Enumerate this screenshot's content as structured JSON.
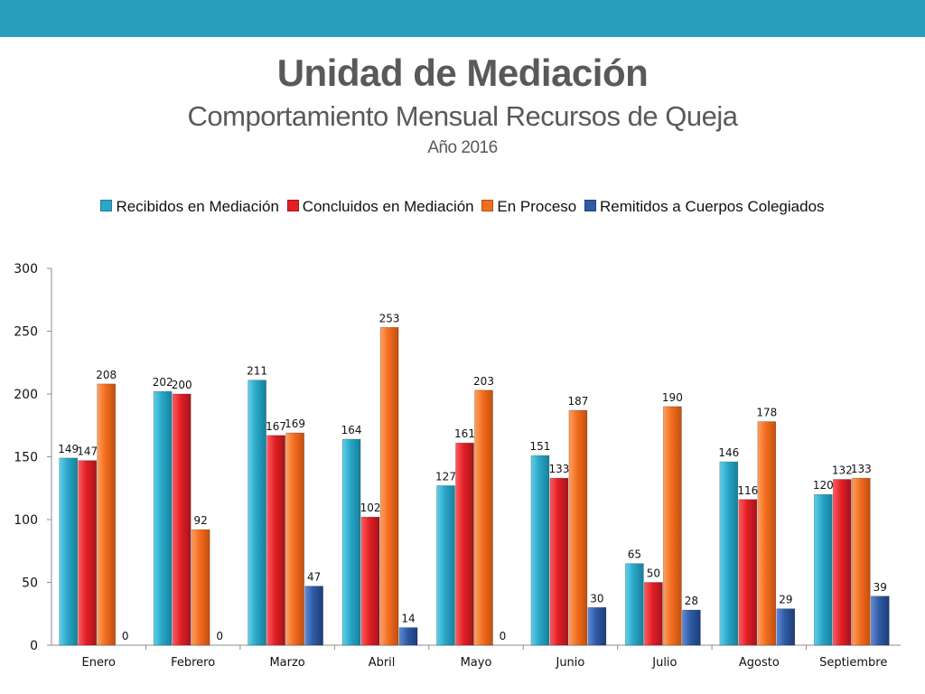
{
  "header": {
    "title": "Unidad de Mediación",
    "subtitle": "Comportamiento Mensual Recursos de Queja",
    "year": "Año 2016"
  },
  "colors": {
    "topbar": "#2a9fbd",
    "series": [
      "#2aa6c6",
      "#e01f26",
      "#f26d1e",
      "#2f5aa4"
    ]
  },
  "chart_data": {
    "type": "bar",
    "categories": [
      "Enero",
      "Febrero",
      "Marzo",
      "Abril",
      "Mayo",
      "Junio",
      "Julio",
      "Agosto",
      "Septiembre"
    ],
    "series": [
      {
        "name": "Recibidos en Mediación",
        "values": [
          149,
          202,
          211,
          164,
          127,
          151,
          65,
          146,
          120
        ]
      },
      {
        "name": "Concluidos en Mediación",
        "values": [
          147,
          200,
          167,
          102,
          161,
          133,
          50,
          116,
          132
        ]
      },
      {
        "name": "En Proceso",
        "values": [
          208,
          92,
          169,
          253,
          203,
          187,
          190,
          178,
          133
        ]
      },
      {
        "name": "Remitidos a Cuerpos Colegiados",
        "values": [
          0,
          0,
          47,
          14,
          0,
          30,
          28,
          29,
          39
        ]
      }
    ],
    "ylim": [
      0,
      300
    ],
    "yticks": [
      "0",
      "50",
      "100",
      "150",
      "200",
      "250",
      "300"
    ],
    "legend_position": "top",
    "grid": false
  }
}
